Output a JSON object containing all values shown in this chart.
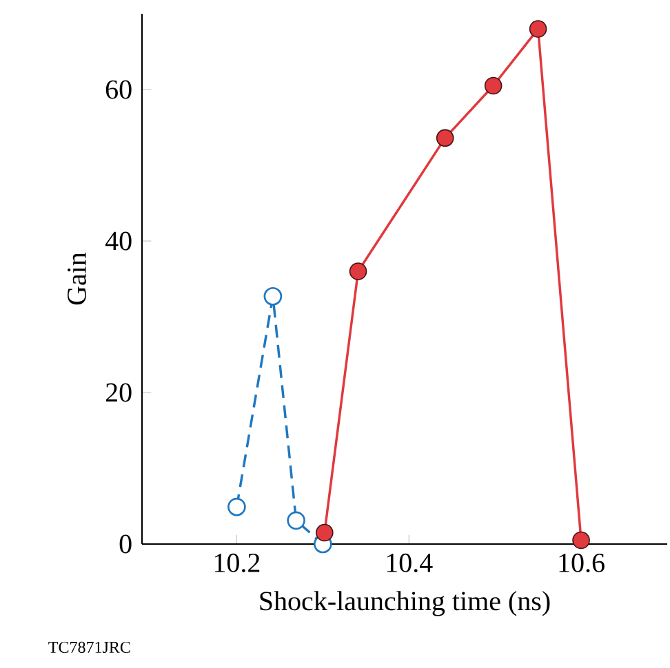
{
  "chart_data": {
    "type": "line",
    "xlabel": "Shock-launching time (ns)",
    "ylabel": "Gain",
    "xlim": [
      10.09,
      10.7
    ],
    "ylim": [
      0,
      70
    ],
    "xticks": [
      10.2,
      10.4,
      10.6
    ],
    "yticks": [
      0,
      20,
      40,
      60
    ],
    "marker": "circle",
    "grid": false,
    "series": [
      {
        "color": "#1f78c1",
        "line_style": "dashed",
        "x": [
          10.2,
          10.242,
          10.269,
          10.3
        ],
        "values": [
          4.9,
          32.7,
          3.1,
          0
        ]
      },
      {
        "color": "#e0393e",
        "line_style": "solid",
        "x": [
          10.302,
          10.341,
          10.442,
          10.498,
          10.55,
          10.6
        ],
        "values": [
          1.5,
          36,
          53.6,
          60.5,
          68,
          0.5
        ]
      }
    ],
    "annotations": [
      "TC7871JRC"
    ]
  }
}
